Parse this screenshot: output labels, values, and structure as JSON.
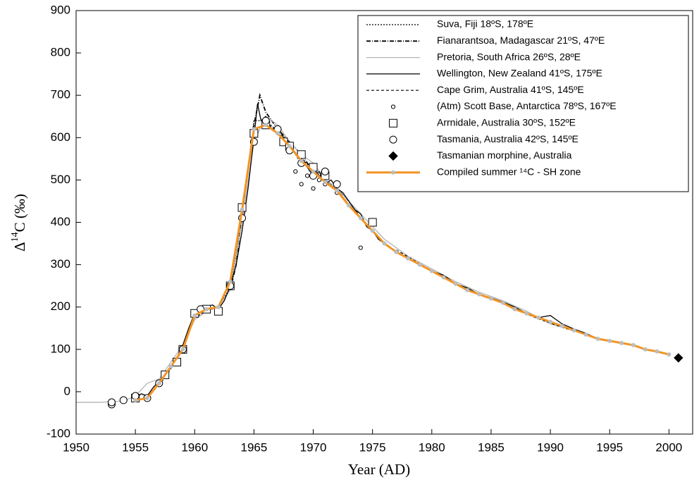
{
  "chart_data": {
    "type": "line",
    "xlabel": "Year (AD)",
    "ylabel": [
      "Δ",
      "14",
      "C (‰)"
    ],
    "xlim": [
      1950,
      2002
    ],
    "ylim": [
      -100,
      900
    ],
    "xticks": [
      1950,
      1955,
      1960,
      1965,
      1970,
      1975,
      1980,
      1985,
      1990,
      1995,
      2000
    ],
    "yticks": [
      -100,
      0,
      100,
      200,
      300,
      400,
      500,
      600,
      700,
      800,
      900
    ],
    "legend": "upper right",
    "series": [
      {
        "name": "Suva, Fiji 18ºS, 178ºE",
        "color": "#000000",
        "style": "dotted",
        "x": [
          1957,
          1958,
          1959,
          1960,
          1961,
          1962,
          1963,
          1964,
          1965,
          1966,
          1967,
          1968,
          1969,
          1970,
          1971,
          1972
        ],
        "values": [
          15,
          55,
          100,
          175,
          190,
          200,
          245,
          420,
          640,
          640,
          615,
          580,
          550,
          525,
          500,
          475
        ]
      },
      {
        "name": "Fianarantsoa, Madagascar 21ºS, 47ºE",
        "color": "#000000",
        "style": "dashdot",
        "x": [
          1963,
          1963.5,
          1964,
          1964.5,
          1965,
          1965.5,
          1966,
          1966.5,
          1967,
          1968,
          1969,
          1970,
          1971,
          1972,
          1973,
          1974
        ],
        "values": [
          240,
          300,
          420,
          520,
          630,
          700,
          660,
          640,
          620,
          590,
          560,
          520,
          500,
          480,
          450,
          410
        ]
      },
      {
        "name": "Pretoria, South Africa 26ºS, 28ºE",
        "color": "#b4b4b4",
        "style": "solid",
        "x": [
          1950,
          1952,
          1954,
          1955,
          1956,
          1957,
          1958,
          1959,
          1960,
          1961,
          1962,
          1963,
          1964,
          1965,
          1966,
          1967,
          1968,
          1969,
          1970,
          1971,
          1972,
          1973,
          1974,
          1975,
          1976,
          1978,
          1980,
          1982,
          1984,
          1986,
          1988,
          1990,
          1992,
          1994,
          1996
        ],
        "values": [
          -25,
          -25,
          -22,
          -10,
          20,
          30,
          70,
          110,
          170,
          190,
          200,
          240,
          400,
          590,
          650,
          630,
          590,
          560,
          540,
          500,
          480,
          450,
          420,
          390,
          360,
          320,
          290,
          260,
          235,
          215,
          190,
          160,
          145,
          125,
          115
        ]
      },
      {
        "name": "Wellington, New Zealand 41ºS, 175ºE",
        "color": "#000000",
        "style": "solid",
        "x": [
          1955,
          1955.5,
          1956,
          1956.5,
          1957,
          1957.5,
          1958,
          1958.5,
          1959,
          1959.5,
          1960,
          1960.5,
          1961,
          1961.5,
          1962,
          1962.5,
          1963,
          1963.5,
          1964,
          1964.5,
          1965,
          1965.3,
          1965.6,
          1966,
          1966.5,
          1967,
          1967.5,
          1968,
          1968.5,
          1969,
          1969.5,
          1970,
          1970.5,
          1971,
          1971.5,
          1972,
          1972.5,
          1973,
          1973.5,
          1974,
          1974.5,
          1975,
          1975.5,
          1976,
          1977,
          1978,
          1979,
          1980,
          1981,
          1982,
          1983,
          1984,
          1985,
          1986,
          1987,
          1988,
          1989,
          1990,
          1990.5,
          1991,
          1992,
          1993,
          1994,
          1995,
          1996,
          1997
        ],
        "values": [
          -15,
          -5,
          -10,
          10,
          25,
          40,
          60,
          80,
          110,
          150,
          185,
          195,
          200,
          205,
          195,
          215,
          250,
          300,
          380,
          480,
          600,
          680,
          640,
          650,
          620,
          625,
          600,
          590,
          560,
          545,
          530,
          510,
          520,
          490,
          500,
          480,
          470,
          450,
          430,
          420,
          390,
          380,
          360,
          350,
          330,
          315,
          300,
          285,
          275,
          255,
          245,
          230,
          222,
          212,
          200,
          185,
          175,
          180,
          170,
          160,
          148,
          138,
          125,
          120,
          115,
          110
        ]
      },
      {
        "name": "Cape Grim, Australia 41ºS, 145ºE",
        "color": "#000000",
        "style": "dashed",
        "x": [
          1977,
          1979,
          1981,
          1983,
          1985,
          1987,
          1989,
          1991,
          1993,
          1995
        ],
        "values": [
          335,
          302,
          270,
          242,
          220,
          195,
          172,
          152,
          135,
          118
        ]
      },
      {
        "name": "(Atm) Scott Base, Antarctica 78ºS, 167ºE",
        "color": "#000000",
        "marker": "small-circle",
        "x": [
          1968.5,
          1969,
          1969.5,
          1970,
          1970.5,
          1971,
          1972,
          1974,
          1975
        ],
        "values": [
          520,
          490,
          510,
          480,
          500,
          490,
          470,
          340,
          405
        ]
      },
      {
        "name": "Arrnidale, Australia 30ºS, 152ºE",
        "color": "#000000",
        "marker": "square",
        "x": [
          1955,
          1957.5,
          1958.5,
          1959,
          1960,
          1961,
          1962,
          1963,
          1964,
          1965,
          1966,
          1967.5,
          1968,
          1969,
          1970,
          1971,
          1975
        ],
        "values": [
          -15,
          40,
          70,
          100,
          185,
          195,
          190,
          250,
          435,
          610,
          630,
          590,
          580,
          560,
          530,
          510,
          400
        ]
      },
      {
        "name": "Tasmania, Australia 42ºS, 145ºE",
        "color": "#000000",
        "marker": "circle",
        "x": [
          1953,
          1953,
          1954,
          1955,
          1956,
          1957,
          1959,
          1960.5,
          1963,
          1964,
          1965,
          1966,
          1967,
          1968,
          1969,
          1970,
          1971,
          1972
        ],
        "values": [
          -30,
          -25,
          -20,
          -10,
          -15,
          20,
          100,
          195,
          250,
          410,
          590,
          640,
          620,
          570,
          540,
          510,
          520,
          490
        ]
      },
      {
        "name": "Tasmanian morphine, Australia",
        "color": "#000000",
        "marker": "diamond",
        "x": [
          2000.8
        ],
        "values": [
          80
        ]
      },
      {
        "name": "Compiled summer ¹⁴C - SH zone",
        "color": "#f39423",
        "style": "thick",
        "marker": "dot",
        "marker_color": "#bdbdbd",
        "x": [
          1955,
          1956,
          1957,
          1958,
          1959,
          1960,
          1961,
          1962,
          1963,
          1964,
          1965,
          1966,
          1967,
          1968,
          1969,
          1970,
          1971,
          1972,
          1973,
          1974,
          1975,
          1976,
          1977,
          1978,
          1979,
          1980,
          1981,
          1982,
          1983,
          1984,
          1985,
          1986,
          1987,
          1988,
          1989,
          1990,
          1991,
          1992,
          1993,
          1994,
          1995,
          1996,
          1997,
          1998,
          1999,
          2000
        ],
        "values": [
          -20,
          -15,
          20,
          60,
          100,
          180,
          195,
          200,
          260,
          430,
          620,
          630,
          610,
          580,
          545,
          520,
          495,
          475,
          440,
          410,
          380,
          350,
          330,
          315,
          300,
          285,
          270,
          255,
          240,
          230,
          220,
          210,
          195,
          185,
          175,
          165,
          155,
          145,
          135,
          125,
          120,
          115,
          110,
          100,
          95,
          88
        ]
      }
    ]
  }
}
